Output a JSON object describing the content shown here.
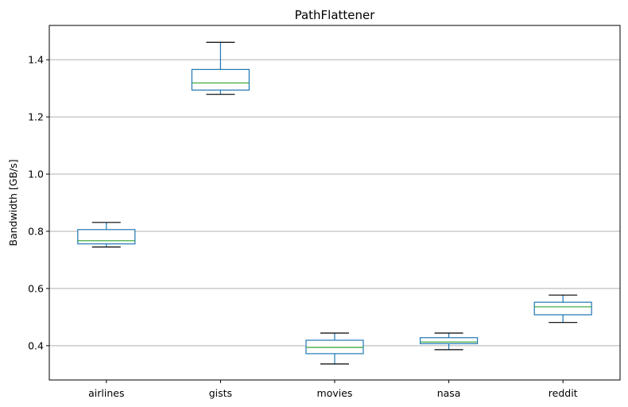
{
  "chart_data": {
    "type": "box",
    "title": "PathFlattener",
    "xlabel": "",
    "ylabel": "Bandwidth [GB/s]",
    "ylim": [
      0.28,
      1.52
    ],
    "yticks": [
      0.4,
      0.6,
      0.8,
      1.0,
      1.2,
      1.4
    ],
    "ytick_labels": [
      "0.4",
      "0.6",
      "0.8",
      "1.0",
      "1.2",
      "1.4"
    ],
    "grid": "horizontal",
    "categories": [
      "airlines",
      "gists",
      "movies",
      "nasa",
      "reddit"
    ],
    "boxes": [
      {
        "category": "airlines",
        "whisker_low": 0.745,
        "q1": 0.756,
        "median": 0.767,
        "q3": 0.806,
        "whisker_high": 0.831
      },
      {
        "category": "gists",
        "whisker_low": 1.279,
        "q1": 1.294,
        "median": 1.319,
        "q3": 1.366,
        "whisker_high": 1.461
      },
      {
        "category": "movies",
        "whisker_low": 0.336,
        "q1": 0.372,
        "median": 0.394,
        "q3": 0.419,
        "whisker_high": 0.444
      },
      {
        "category": "nasa",
        "whisker_low": 0.386,
        "q1": 0.407,
        "median": 0.413,
        "q3": 0.428,
        "whisker_high": 0.444
      },
      {
        "category": "reddit",
        "whisker_low": 0.481,
        "q1": 0.508,
        "median": 0.536,
        "q3": 0.552,
        "whisker_high": 0.577
      }
    ],
    "colors": {
      "box": "#1f77b4",
      "median": "#2ca02c",
      "cap": "#000000",
      "grid": "#b0b0b0",
      "axes": "#000000"
    }
  }
}
